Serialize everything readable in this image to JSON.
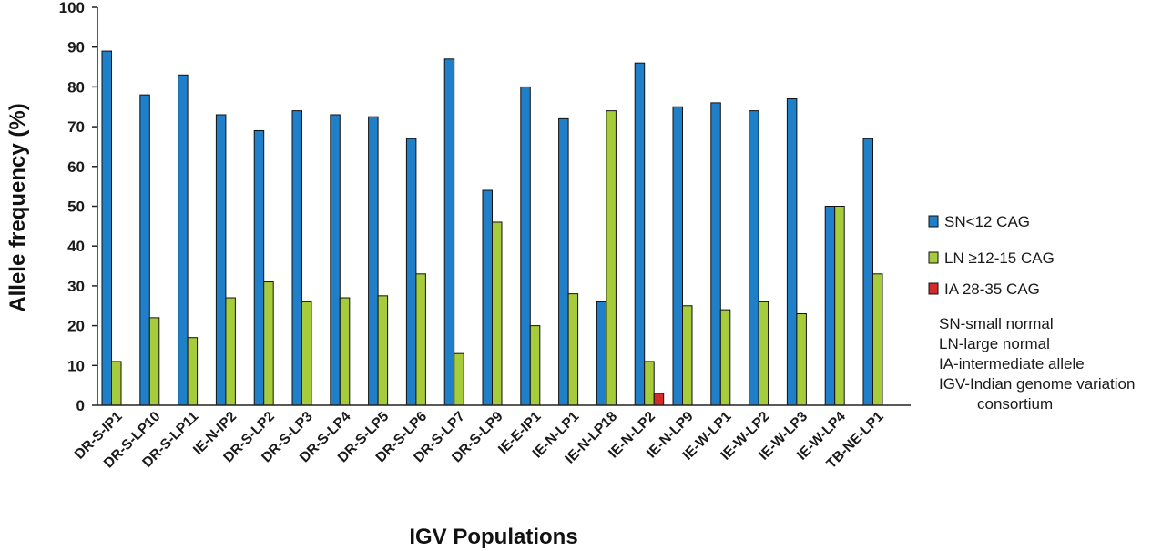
{
  "chart_data": {
    "type": "bar",
    "title": "",
    "xlabel": "IGV Populations",
    "ylabel": "Allele frequency (%)",
    "ylim": [
      0,
      100
    ],
    "yticks": [
      0,
      10,
      20,
      30,
      40,
      50,
      60,
      70,
      80,
      90,
      100
    ],
    "categories": [
      "DR-S-IP1",
      "DR-S-LP10",
      "DR-S-LP11",
      "IE-N-IP2",
      "DR-S-LP2",
      "DR-S-LP3",
      "DR-S-LP4",
      "DR-S-LP5",
      "DR-S-LP6",
      "DR-S-LP7",
      "DR-S-LP9",
      "IE-E-IP1",
      "IE-N-LP1",
      "IE-N-LP18",
      "IE-N-LP2",
      "IE-N-LP9",
      "IE-W-LP1",
      "IE-W-LP2",
      "IE-W-LP3",
      "IE-W-LP4",
      "TB-NE-LP1"
    ],
    "series": [
      {
        "name": "SN<12 CAG",
        "color": "#1f7fc8",
        "values": [
          89,
          78,
          83,
          73,
          69,
          74,
          73,
          72.5,
          67,
          87,
          54,
          80,
          72,
          26,
          86,
          75,
          76,
          74,
          77,
          50,
          67
        ]
      },
      {
        "name": "LN ≥12-15 CAG",
        "color": "#a6cc3c",
        "values": [
          11,
          22,
          17,
          27,
          31,
          26,
          27,
          27.5,
          33,
          13,
          46,
          20,
          28,
          74,
          11,
          25,
          24,
          26,
          23,
          50,
          33
        ]
      },
      {
        "name": "IA 28-35 CAG",
        "color": "#d42a2a",
        "values": [
          0,
          0,
          0,
          0,
          0,
          0,
          0,
          0,
          0,
          0,
          0,
          0,
          0,
          0,
          3,
          0,
          0,
          0,
          0,
          0,
          0
        ]
      }
    ],
    "legend_position": "right",
    "grid": false
  },
  "notes": [
    "SN-small normal",
    "LN-large normal",
    "IA-intermediate allele",
    "IGV-Indian genome variation",
    "consortium"
  ]
}
